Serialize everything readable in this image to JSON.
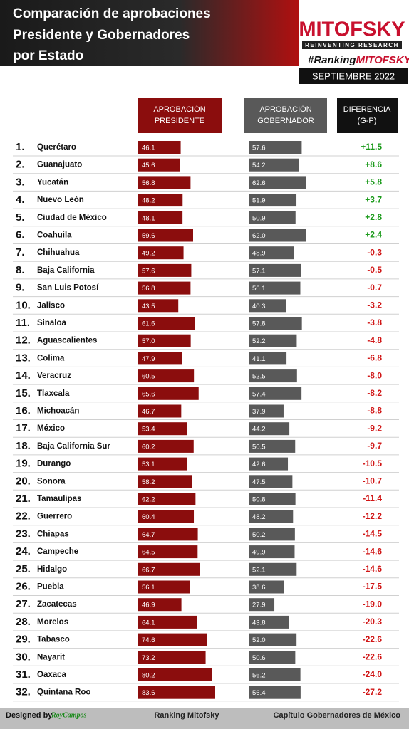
{
  "header": {
    "title_lines": [
      "Comparación de aprobaciones",
      "Presidente y Gobernadores",
      "por Estado"
    ],
    "brand": "MITOFSKY",
    "tagline": "REINVENTING RESEARCH",
    "hashtag_prefix": "#Ranking",
    "hashtag_brand": "MITOFSKY",
    "date": "SEPTIEMBRE 2022"
  },
  "chart_data": {
    "type": "bar",
    "ranks": [
      "1.",
      "2.",
      "3.",
      "4.",
      "5.",
      "6.",
      "7.",
      "8.",
      "9.",
      "10.",
      "11.",
      "12.",
      "13.",
      "14.",
      "15.",
      "16.",
      "17.",
      "18.",
      "19.",
      "20.",
      "21.",
      "22.",
      "23.",
      "24.",
      "25.",
      "26.",
      "27.",
      "28.",
      "29.",
      "30.",
      "31.",
      "32."
    ],
    "categories": [
      "Querétaro",
      "Guanajuato",
      "Yucatán",
      "Nuevo León",
      "Ciudad de México",
      "Coahuila",
      "Chihuahua",
      "Baja California",
      "San Luis Potosí",
      "Jalisco",
      "Sinaloa",
      "Aguascalientes",
      "Colima",
      "Veracruz",
      "Tlaxcala",
      "Michoacán",
      "México",
      "Baja California Sur",
      "Durango",
      "Sonora",
      "Tamaulipas",
      "Guerrero",
      "Chiapas",
      "Campeche",
      "Hidalgo",
      "Puebla",
      "Zacatecas",
      "Morelos",
      "Tabasco",
      "Nayarit",
      "Oaxaca",
      "Quintana Roo"
    ],
    "series": [
      {
        "name": [
          "APROBACIÓN",
          "PRESIDENTE"
        ],
        "color": "#8b0d0d",
        "values": [
          46.1,
          45.6,
          56.8,
          48.2,
          48.1,
          59.6,
          49.2,
          57.6,
          56.8,
          43.5,
          61.6,
          57.0,
          47.9,
          60.5,
          65.6,
          46.7,
          53.4,
          60.2,
          53.1,
          58.2,
          62.2,
          60.4,
          64.7,
          64.5,
          66.7,
          56.1,
          46.9,
          64.1,
          74.6,
          73.2,
          80.2,
          83.6
        ],
        "value_labels": [
          "46.1",
          "45.6",
          "56.8",
          "48.2",
          "48.1",
          "59.6",
          "49.2",
          "57.6",
          "56.8",
          "43.5",
          "61.6",
          "57.0",
          "47.9",
          "60.5",
          "65.6",
          "46.7",
          "53.4",
          "60.2",
          "53.1",
          "58.2",
          "62.2",
          "60.4",
          "64.7",
          "64.5",
          "66.7",
          "56.1",
          "46.9",
          "64.1",
          "74.6",
          "73.2",
          "80.2",
          "83.6"
        ]
      },
      {
        "name": [
          "APROBACIÓN",
          "GOBERNADOR"
        ],
        "color": "#595959",
        "values": [
          57.6,
          54.2,
          62.6,
          51.9,
          50.9,
          62.0,
          48.9,
          57.1,
          56.1,
          40.3,
          57.8,
          52.2,
          41.1,
          52.5,
          57.4,
          37.9,
          44.2,
          50.5,
          42.6,
          47.5,
          50.8,
          48.2,
          50.2,
          49.9,
          52.1,
          38.6,
          27.9,
          43.8,
          52.0,
          50.6,
          56.2,
          56.4
        ],
        "value_labels": [
          "57.6",
          "54.2",
          "62.6",
          "51.9",
          "50.9",
          "62.0",
          "48.9",
          "57.1",
          "56.1",
          "40.3",
          "57.8",
          "52.2",
          "41.1",
          "52.5",
          "57.4",
          "37.9",
          "44.2",
          "50.5",
          "42.6",
          "47.5",
          "50.8",
          "48.2",
          "50.2",
          "49.9",
          "52.1",
          "38.6",
          "27.9",
          "43.8",
          "52.0",
          "50.6",
          "56.2",
          "56.4"
        ]
      }
    ],
    "difference": {
      "name": [
        "DIFERENCIA",
        "(G-P)"
      ],
      "positive_color": "#1a9a1a",
      "negative_color": "#d01515",
      "values": [
        11.5,
        8.6,
        5.8,
        3.7,
        2.8,
        2.4,
        -0.3,
        -0.5,
        -0.7,
        -3.2,
        -3.8,
        -4.8,
        -6.8,
        -8.0,
        -8.2,
        -8.8,
        -9.2,
        -9.7,
        -10.5,
        -10.7,
        -11.4,
        -12.2,
        -14.5,
        -14.6,
        -14.6,
        -17.5,
        -19.0,
        -20.3,
        -22.6,
        -22.6,
        -24.0,
        -27.2
      ],
      "value_labels": [
        "+11.5",
        "+8.6",
        "+5.8",
        "+3.7",
        "+2.8",
        "+2.4",
        "-0.3",
        "-0.5",
        "-0.7",
        "-3.2",
        "-3.8",
        "-4.8",
        "-6.8",
        "-8.0",
        "-8.2",
        "-8.8",
        "-9.2",
        "-9.7",
        "-10.5",
        "-10.7",
        "-11.4",
        "-12.2",
        "-14.5",
        "-14.6",
        "-14.6",
        "-17.5",
        "-19.0",
        "-20.3",
        "-22.6",
        "-22.6",
        "-24.0",
        "-27.2"
      ]
    }
  },
  "footer": {
    "designed_by": "Designed by",
    "designer": "RoyCampos",
    "center": "Ranking Mitofsky",
    "right": "Capítulo Gobernadores de México"
  }
}
